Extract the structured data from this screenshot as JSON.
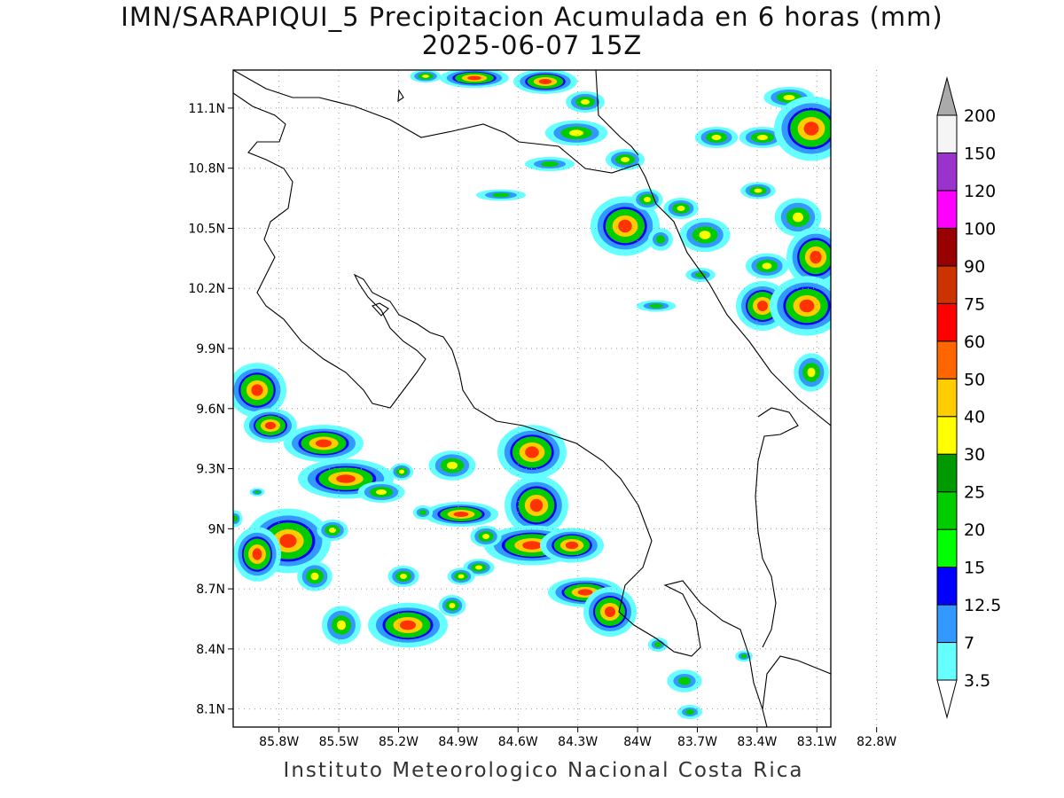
{
  "title": {
    "line1": "IMN/SARAPIQUI_5 Precipitacion Acumulada en 6 horas (mm)",
    "line2": "2025-06-07 15Z"
  },
  "footer": "Instituto Meteorologico Nacional Costa Rica",
  "map": {
    "lon_range": [
      -86.03,
      -83.03
    ],
    "lat_range": [
      8.01,
      11.29
    ],
    "lon_ticks": [
      {
        "value": -85.8,
        "label": "85.8W"
      },
      {
        "value": -85.5,
        "label": "85.5W"
      },
      {
        "value": -85.2,
        "label": "85.2W"
      },
      {
        "value": -84.9,
        "label": "84.9W"
      },
      {
        "value": -84.6,
        "label": "84.6W"
      },
      {
        "value": -84.3,
        "label": "84.3W"
      },
      {
        "value": -84.0,
        "label": "84W"
      },
      {
        "value": -83.7,
        "label": "83.7W"
      },
      {
        "value": -83.4,
        "label": "83.4W"
      },
      {
        "value": -83.1,
        "label": "83.1W"
      },
      {
        "value": -82.8,
        "label": "82.8W"
      }
    ],
    "lat_ticks": [
      {
        "value": 11.1,
        "label": "11.1N"
      },
      {
        "value": 10.8,
        "label": "10.8N"
      },
      {
        "value": 10.5,
        "label": "10.5N"
      },
      {
        "value": 10.2,
        "label": "10.2N"
      },
      {
        "value": 9.9,
        "label": "9.9N"
      },
      {
        "value": 9.6,
        "label": "9.6N"
      },
      {
        "value": 9.3,
        "label": "9.3N"
      },
      {
        "value": 9.0,
        "label": "9N"
      },
      {
        "value": 8.7,
        "label": "8.7N"
      },
      {
        "value": 8.4,
        "label": "8.4N"
      },
      {
        "value": 8.1,
        "label": "8.1N"
      }
    ],
    "grid": true
  },
  "colorbar": {
    "levels": [
      {
        "label": "3.5",
        "color": "#66ffff"
      },
      {
        "label": "7",
        "color": "#3399ff"
      },
      {
        "label": "12.5",
        "color": "#0000ff"
      },
      {
        "label": "15",
        "color": "#00ff00"
      },
      {
        "label": "20",
        "color": "#00cc00"
      },
      {
        "label": "25",
        "color": "#009900"
      },
      {
        "label": "30",
        "color": "#ffff00"
      },
      {
        "label": "40",
        "color": "#ffcc00"
      },
      {
        "label": "50",
        "color": "#ff6600"
      },
      {
        "label": "60",
        "color": "#ff0000"
      },
      {
        "label": "75",
        "color": "#cc3300"
      },
      {
        "label": "90",
        "color": "#990000"
      },
      {
        "label": "100",
        "color": "#ff00ff"
      },
      {
        "label": "120",
        "color": "#9933cc"
      },
      {
        "label": "150",
        "color": "#f5f5f5"
      },
      {
        "label": "200",
        "color": "#aaaaaa"
      }
    ]
  }
}
